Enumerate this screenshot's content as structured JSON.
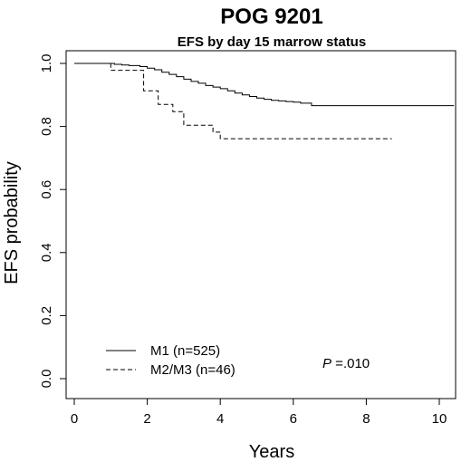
{
  "chart_data": {
    "type": "line",
    "title": "POG 9201",
    "subtitle": "EFS by day 15 marrow status",
    "xlabel": "Years",
    "ylabel": "EFS probability",
    "xlim": [
      0,
      10.5
    ],
    "ylim": [
      0,
      1.0
    ],
    "x_ticks": [
      0,
      2,
      4,
      6,
      8,
      10
    ],
    "y_ticks": [
      0.0,
      0.2,
      0.4,
      0.6,
      0.8,
      1.0
    ],
    "x_tick_labels": [
      "0",
      "2",
      "4",
      "6",
      "8",
      "10"
    ],
    "y_tick_labels": [
      "0.0",
      "0.2",
      "0.4",
      "0.6",
      "0.8",
      "1.0"
    ],
    "grid": false,
    "legend_position": "bottom-left",
    "series": [
      {
        "name": "M1 (n=525)",
        "line_style": "solid",
        "x": [
          0,
          1.1,
          1.3,
          1.5,
          1.8,
          2.0,
          2.2,
          2.4,
          2.6,
          2.8,
          3.0,
          3.2,
          3.4,
          3.6,
          3.8,
          4.0,
          4.2,
          4.4,
          4.6,
          4.8,
          5.0,
          5.2,
          5.4,
          5.6,
          5.8,
          6.0,
          6.2,
          6.5,
          10.4
        ],
        "y": [
          1.0,
          0.997,
          0.995,
          0.993,
          0.99,
          0.985,
          0.98,
          0.972,
          0.965,
          0.958,
          0.95,
          0.943,
          0.937,
          0.93,
          0.925,
          0.92,
          0.913,
          0.906,
          0.9,
          0.895,
          0.89,
          0.886,
          0.883,
          0.881,
          0.879,
          0.877,
          0.874,
          0.866,
          0.866
        ]
      },
      {
        "name": "M2/M3 (n=46)",
        "line_style": "dashed",
        "x": [
          0,
          1.0,
          1.9,
          2.3,
          2.7,
          3.0,
          3.8,
          4.0,
          8.7
        ],
        "y": [
          1.0,
          0.978,
          0.913,
          0.87,
          0.847,
          0.804,
          0.782,
          0.761,
          0.761
        ]
      }
    ],
    "annotations": [
      {
        "text_italic": "P",
        "text": " =.010"
      }
    ]
  }
}
